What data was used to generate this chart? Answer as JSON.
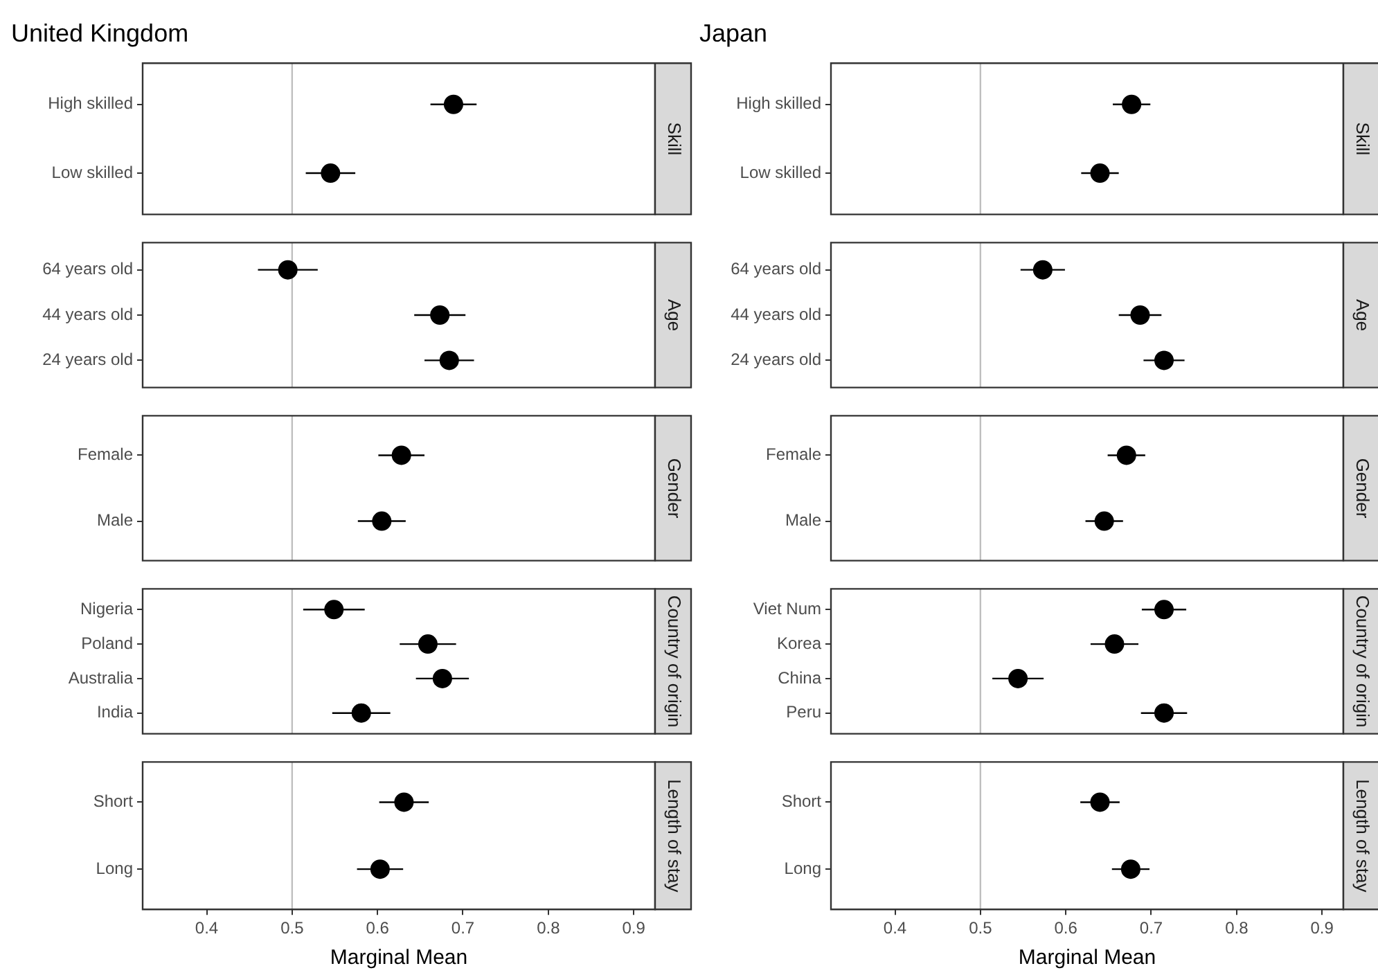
{
  "chart_data": [
    {
      "type": "scatter",
      "orientation": "horizontal",
      "title": "United Kingdom",
      "y2label": "Skill",
      "categories": [
        "High skilled",
        "Low skilled"
      ],
      "values": [
        0.689,
        0.545
      ],
      "errors": [
        0.027,
        0.029
      ],
      "color": "#000000",
      "marker": "circle",
      "xlim": [
        0.325,
        0.925
      ],
      "xticks": [
        0.4,
        0.5,
        0.6,
        0.7,
        0.8,
        0.9
      ],
      "tick_labels": "y",
      "ref_lines": [
        {
          "axis": "x",
          "value": 0.5,
          "color": "#bfbfbf"
        }
      ]
    },
    {
      "type": "scatter",
      "orientation": "horizontal",
      "title": "Japan",
      "y2label": "Skill",
      "categories": [
        "High skilled",
        "Low skilled"
      ],
      "values": [
        0.677,
        0.64
      ],
      "errors": [
        0.022,
        0.022
      ],
      "color": "#000000",
      "marker": "circle",
      "xlim": [
        0.325,
        0.925
      ],
      "xticks": [
        0.4,
        0.5,
        0.6,
        0.7,
        0.8,
        0.9
      ],
      "tick_labels": "y",
      "ref_lines": [
        {
          "axis": "x",
          "value": 0.5,
          "color": "#bfbfbf"
        }
      ]
    },
    {
      "type": "scatter",
      "orientation": "horizontal",
      "y2label": "Age",
      "categories": [
        "64 years old",
        "44 years old",
        "24 years old"
      ],
      "values": [
        0.495,
        0.673,
        0.684
      ],
      "errors": [
        0.035,
        0.03,
        0.029
      ],
      "color": "#000000",
      "marker": "circle",
      "xlim": [
        0.325,
        0.925
      ],
      "xticks": [
        0.4,
        0.5,
        0.6,
        0.7,
        0.8,
        0.9
      ],
      "tick_labels": "y",
      "ref_lines": [
        {
          "axis": "x",
          "value": 0.5,
          "color": "#bfbfbf"
        }
      ]
    },
    {
      "type": "scatter",
      "orientation": "horizontal",
      "y2label": "Age",
      "categories": [
        "64 years old",
        "44 years old",
        "24 years old"
      ],
      "values": [
        0.573,
        0.687,
        0.715
      ],
      "errors": [
        0.026,
        0.025,
        0.024
      ],
      "color": "#000000",
      "marker": "circle",
      "xlim": [
        0.325,
        0.925
      ],
      "xticks": [
        0.4,
        0.5,
        0.6,
        0.7,
        0.8,
        0.9
      ],
      "tick_labels": "y",
      "ref_lines": [
        {
          "axis": "x",
          "value": 0.5,
          "color": "#bfbfbf"
        }
      ]
    },
    {
      "type": "scatter",
      "orientation": "horizontal",
      "y2label": "Gender",
      "categories": [
        "Female",
        "Male"
      ],
      "values": [
        0.628,
        0.605
      ],
      "errors": [
        0.027,
        0.028
      ],
      "color": "#000000",
      "marker": "circle",
      "xlim": [
        0.325,
        0.925
      ],
      "xticks": [
        0.4,
        0.5,
        0.6,
        0.7,
        0.8,
        0.9
      ],
      "tick_labels": "y",
      "ref_lines": [
        {
          "axis": "x",
          "value": 0.5,
          "color": "#bfbfbf"
        }
      ]
    },
    {
      "type": "scatter",
      "orientation": "horizontal",
      "y2label": "Gender",
      "categories": [
        "Female",
        "Male"
      ],
      "values": [
        0.671,
        0.645
      ],
      "errors": [
        0.022,
        0.022
      ],
      "color": "#000000",
      "marker": "circle",
      "xlim": [
        0.325,
        0.925
      ],
      "xticks": [
        0.4,
        0.5,
        0.6,
        0.7,
        0.8,
        0.9
      ],
      "tick_labels": "y",
      "ref_lines": [
        {
          "axis": "x",
          "value": 0.5,
          "color": "#bfbfbf"
        }
      ]
    },
    {
      "type": "scatter",
      "orientation": "horizontal",
      "y2label": "Country of origin",
      "categories": [
        "Nigeria",
        "Poland",
        "Australia",
        "India"
      ],
      "values": [
        0.549,
        0.659,
        0.676,
        0.581
      ],
      "errors": [
        0.036,
        0.033,
        0.031,
        0.034
      ],
      "color": "#000000",
      "marker": "circle",
      "xlim": [
        0.325,
        0.925
      ],
      "xticks": [
        0.4,
        0.5,
        0.6,
        0.7,
        0.8,
        0.9
      ],
      "tick_labels": "y",
      "ref_lines": [
        {
          "axis": "x",
          "value": 0.5,
          "color": "#bfbfbf"
        }
      ]
    },
    {
      "type": "scatter",
      "orientation": "horizontal",
      "y2label": "Country of origin",
      "categories": [
        "Viet Num",
        "Korea",
        "China",
        "Peru"
      ],
      "values": [
        0.715,
        0.657,
        0.544,
        0.715
      ],
      "errors": [
        0.026,
        0.028,
        0.03,
        0.027
      ],
      "color": "#000000",
      "marker": "circle",
      "xlim": [
        0.325,
        0.925
      ],
      "xticks": [
        0.4,
        0.5,
        0.6,
        0.7,
        0.8,
        0.9
      ],
      "tick_labels": "y",
      "ref_lines": [
        {
          "axis": "x",
          "value": 0.5,
          "color": "#bfbfbf"
        }
      ]
    },
    {
      "type": "scatter",
      "orientation": "horizontal",
      "y2label": "Length of stay",
      "xlabel": "Marginal Mean",
      "categories": [
        "Short",
        "Long"
      ],
      "values": [
        0.631,
        0.603
      ],
      "errors": [
        0.029,
        0.027
      ],
      "color": "#000000",
      "marker": "circle",
      "xlim": [
        0.325,
        0.925
      ],
      "xticks": [
        0.4,
        0.5,
        0.6,
        0.7,
        0.8,
        0.9
      ],
      "ref_lines": [
        {
          "axis": "x",
          "value": 0.5,
          "color": "#bfbfbf"
        }
      ]
    },
    {
      "type": "scatter",
      "orientation": "horizontal",
      "y2label": "Length of stay",
      "xlabel": "Marginal Mean",
      "categories": [
        "Short",
        "Long"
      ],
      "values": [
        0.64,
        0.676
      ],
      "errors": [
        0.023,
        0.022
      ],
      "color": "#000000",
      "marker": "circle",
      "xlim": [
        0.325,
        0.925
      ],
      "xticks": [
        0.4,
        0.5,
        0.6,
        0.7,
        0.8,
        0.9
      ],
      "ref_lines": [
        {
          "axis": "x",
          "value": 0.5,
          "color": "#bfbfbf"
        }
      ]
    }
  ]
}
